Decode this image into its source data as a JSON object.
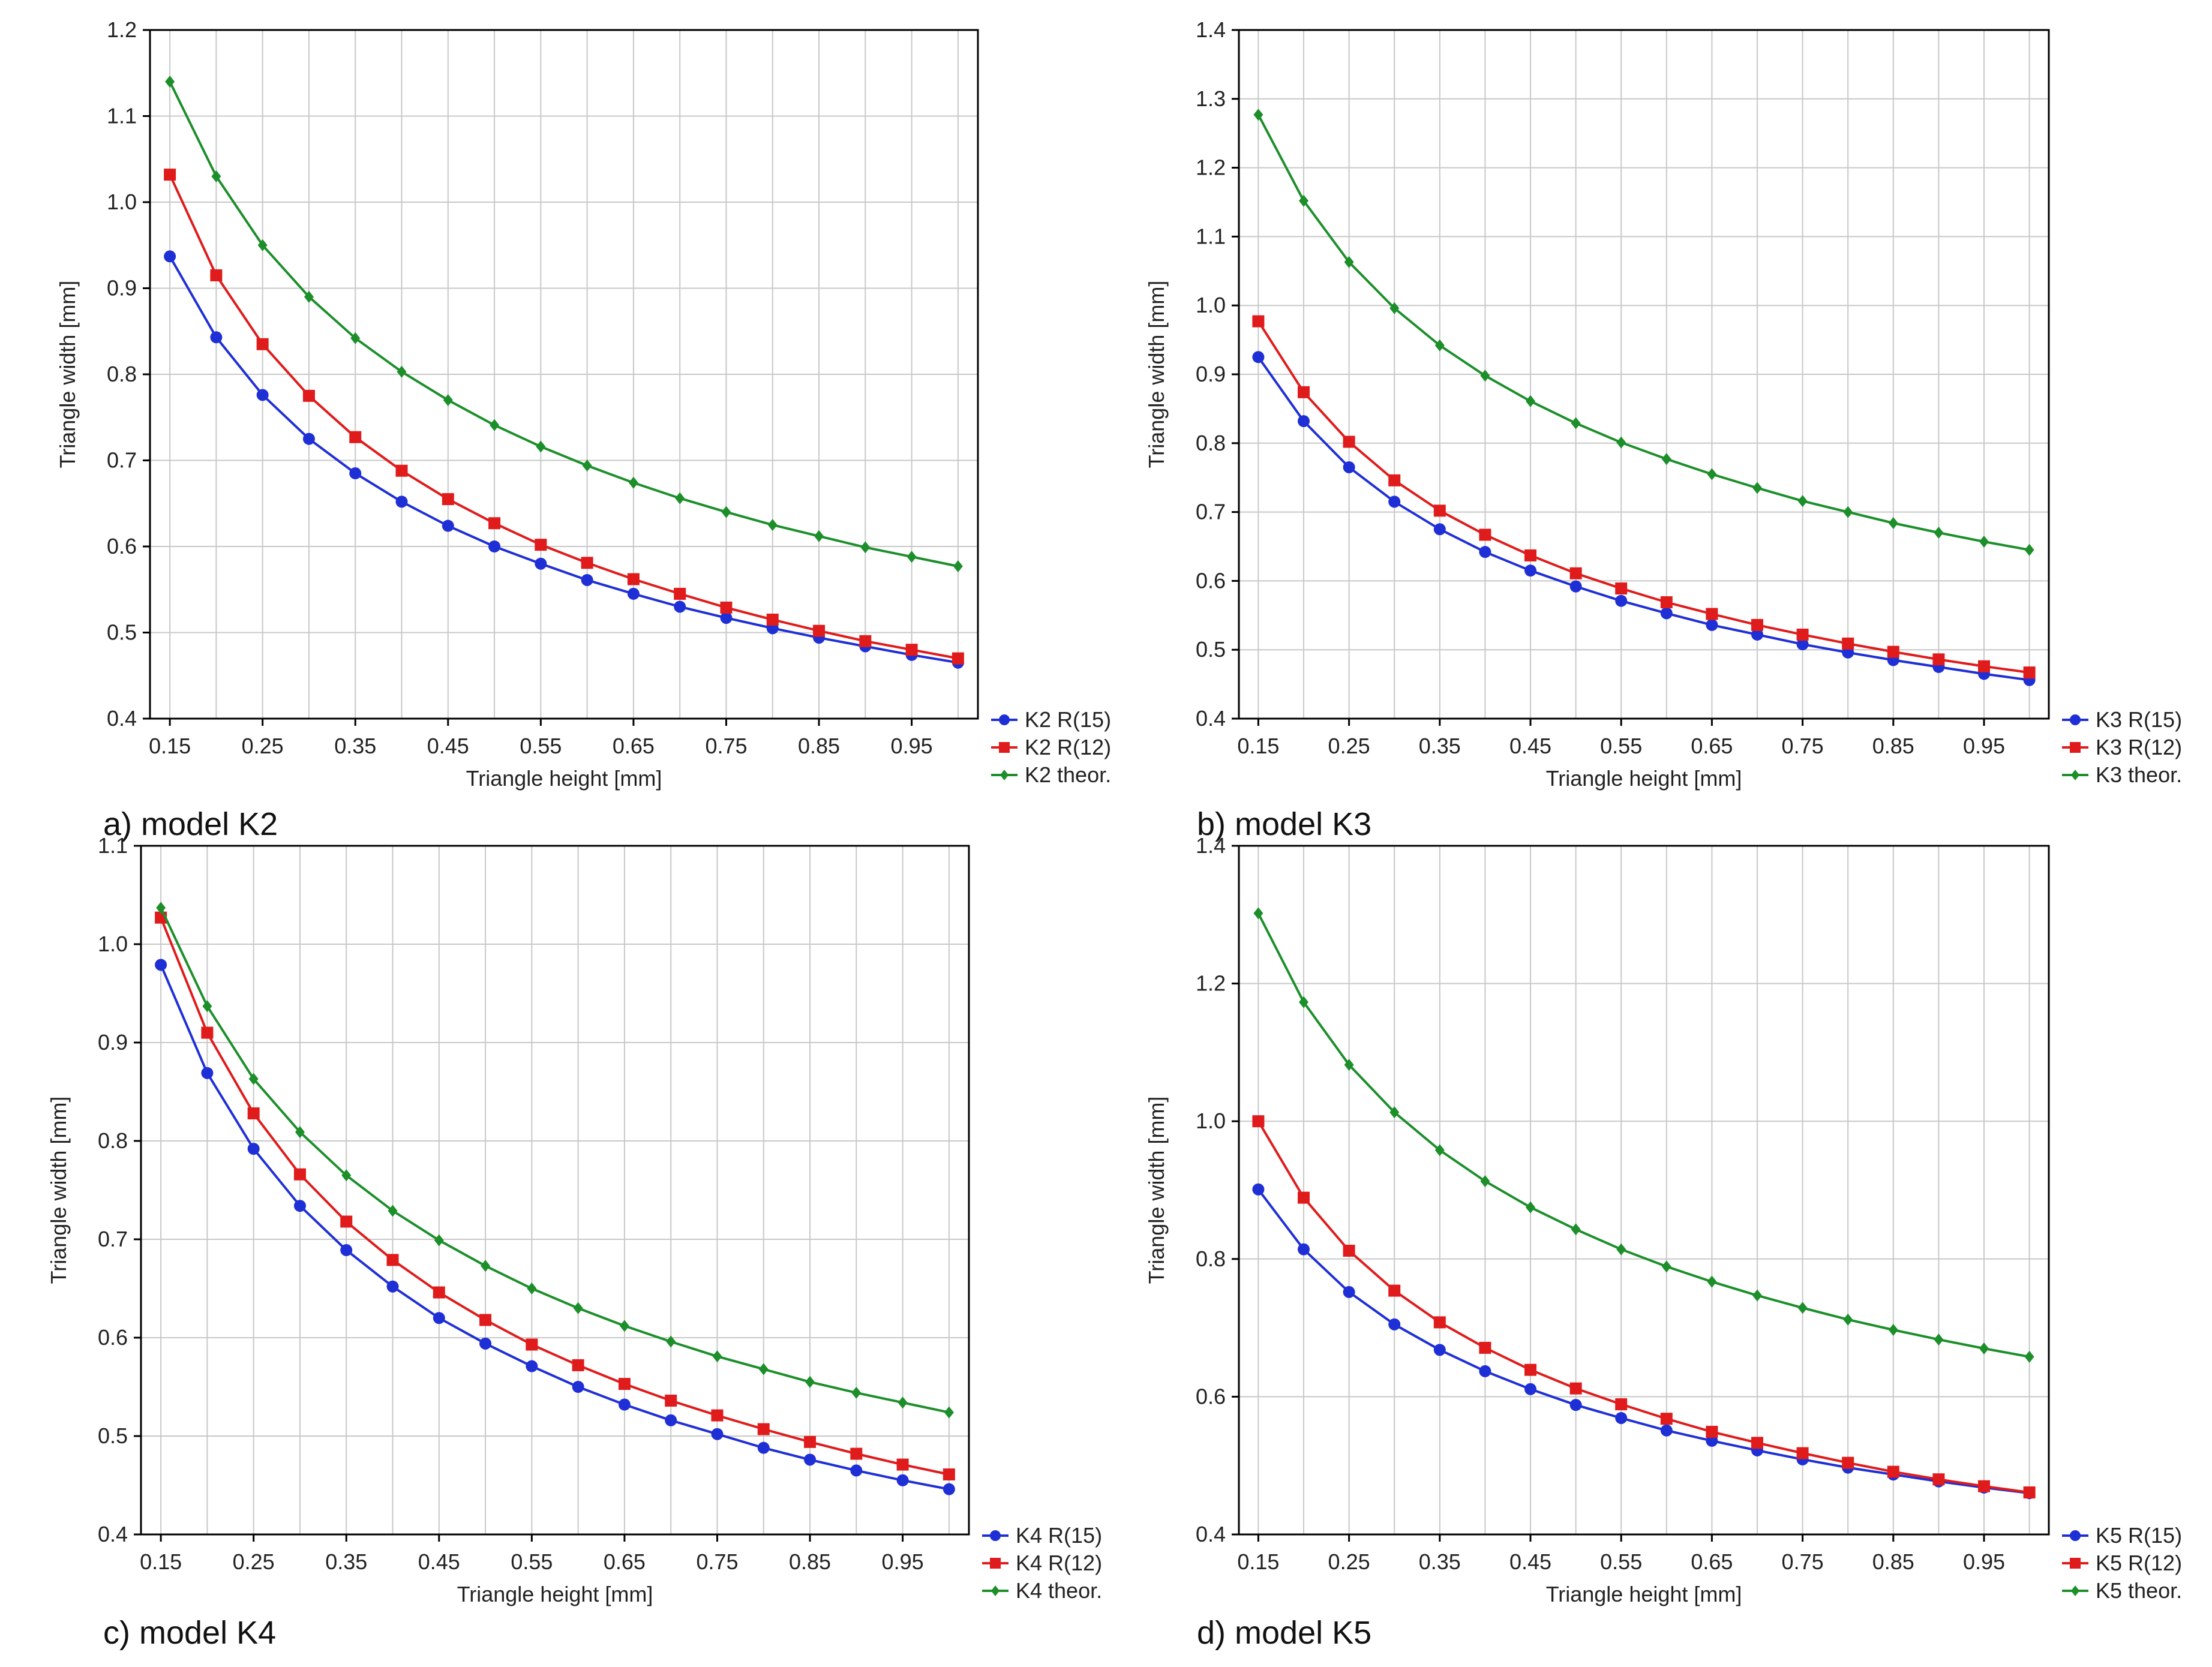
{
  "chart_data": [
    {
      "type": "line",
      "caption": "a) model K2",
      "xlabel": "Triangle height [mm]",
      "ylabel": "Triangle width [mm]",
      "xlim": [
        0.15,
        1.0
      ],
      "ylim": [
        0.4,
        1.2
      ],
      "xticks": [
        "0.15",
        "0.25",
        "0.35",
        "0.45",
        "0.55",
        "0.65",
        "0.75",
        "0.85",
        "0.95"
      ],
      "yticks": [
        "0.4",
        "0.5",
        "0.6",
        "0.7",
        "0.8",
        "0.9",
        "1.0",
        "1.1",
        "1.2"
      ],
      "grid": true,
      "legend_position": "bottom-right outside",
      "x": [
        0.15,
        0.2,
        0.25,
        0.3,
        0.35,
        0.4,
        0.45,
        0.5,
        0.55,
        0.6,
        0.65,
        0.7,
        0.75,
        0.8,
        0.85,
        0.9,
        0.95,
        1.0
      ],
      "series": [
        {
          "name": "K2 R(15)",
          "color": "#1f2fd6",
          "marker": "circle",
          "values": [
            0.937,
            0.843,
            0.776,
            0.725,
            0.685,
            0.652,
            0.624,
            0.6,
            0.58,
            0.561,
            0.545,
            0.53,
            0.517,
            0.505,
            0.494,
            0.484,
            0.474,
            0.465
          ]
        },
        {
          "name": "K2 R(12)",
          "color": "#e01b1b",
          "marker": "square",
          "values": [
            1.032,
            0.915,
            0.835,
            0.775,
            0.727,
            0.688,
            0.655,
            0.627,
            0.602,
            0.581,
            0.562,
            0.545,
            0.529,
            0.515,
            0.502,
            0.49,
            0.48,
            0.47
          ]
        },
        {
          "name": "K2 theor.",
          "color": "#1c8f2a",
          "marker": "diamond",
          "values": [
            1.14,
            1.03,
            0.95,
            0.89,
            0.842,
            0.803,
            0.77,
            0.741,
            0.716,
            0.694,
            0.674,
            0.656,
            0.64,
            0.625,
            0.612,
            0.599,
            0.588,
            0.577
          ]
        }
      ]
    },
    {
      "type": "line",
      "caption": "b) model K3",
      "xlabel": "Triangle height [mm]",
      "ylabel": "Triangle width [mm]",
      "xlim": [
        0.15,
        1.0
      ],
      "ylim": [
        0.4,
        1.4
      ],
      "xticks": [
        "0.15",
        "0.25",
        "0.35",
        "0.45",
        "0.55",
        "0.65",
        "0.75",
        "0.85",
        "0.95"
      ],
      "yticks": [
        "0.4",
        "0.5",
        "0.6",
        "0.7",
        "0.8",
        "0.9",
        "1.0",
        "1.1",
        "1.2",
        "1.3",
        "1.4"
      ],
      "grid": true,
      "legend_position": "bottom-right outside",
      "x": [
        0.15,
        0.2,
        0.25,
        0.3,
        0.35,
        0.4,
        0.45,
        0.5,
        0.55,
        0.6,
        0.65,
        0.7,
        0.75,
        0.8,
        0.85,
        0.9,
        0.95,
        1.0
      ],
      "series": [
        {
          "name": "K3 R(15)",
          "color": "#1f2fd6",
          "marker": "circle",
          "values": [
            0.925,
            0.832,
            0.765,
            0.715,
            0.675,
            0.642,
            0.615,
            0.592,
            0.571,
            0.553,
            0.536,
            0.522,
            0.508,
            0.496,
            0.485,
            0.475,
            0.465,
            0.456
          ]
        },
        {
          "name": "K3 R(12)",
          "color": "#e01b1b",
          "marker": "square",
          "values": [
            0.977,
            0.874,
            0.802,
            0.746,
            0.702,
            0.667,
            0.637,
            0.611,
            0.589,
            0.569,
            0.552,
            0.536,
            0.522,
            0.509,
            0.497,
            0.486,
            0.476,
            0.467
          ]
        },
        {
          "name": "K3 theor.",
          "color": "#1c8f2a",
          "marker": "diamond",
          "values": [
            1.277,
            1.152,
            1.063,
            0.996,
            0.942,
            0.898,
            0.861,
            0.829,
            0.801,
            0.777,
            0.755,
            0.735,
            0.716,
            0.7,
            0.684,
            0.67,
            0.657,
            0.645
          ]
        }
      ]
    },
    {
      "type": "line",
      "caption": "c) model K4",
      "xlabel": "Triangle height [mm]",
      "ylabel": "Triangle width [mm]",
      "xlim": [
        0.15,
        1.0
      ],
      "ylim": [
        0.4,
        1.1
      ],
      "xticks": [
        "0.15",
        "0.25",
        "0.35",
        "0.45",
        "0.55",
        "0.65",
        "0.75",
        "0.85",
        "0.95"
      ],
      "yticks": [
        "0.4",
        "0.5",
        "0.6",
        "0.7",
        "0.8",
        "0.9",
        "1.0",
        "1.1"
      ],
      "grid": true,
      "legend_position": "bottom-right outside",
      "x": [
        0.15,
        0.2,
        0.25,
        0.3,
        0.35,
        0.4,
        0.45,
        0.5,
        0.55,
        0.6,
        0.65,
        0.7,
        0.75,
        0.8,
        0.85,
        0.9,
        0.95,
        1.0
      ],
      "series": [
        {
          "name": "K4 R(15)",
          "color": "#1f2fd6",
          "marker": "circle",
          "values": [
            0.979,
            0.869,
            0.792,
            0.734,
            0.689,
            0.652,
            0.62,
            0.594,
            0.571,
            0.55,
            0.532,
            0.516,
            0.502,
            0.488,
            0.476,
            0.465,
            0.455,
            0.446
          ]
        },
        {
          "name": "K4 R(12)",
          "color": "#e01b1b",
          "marker": "square",
          "values": [
            1.027,
            0.91,
            0.828,
            0.766,
            0.718,
            0.679,
            0.646,
            0.618,
            0.593,
            0.572,
            0.553,
            0.536,
            0.521,
            0.507,
            0.494,
            0.482,
            0.471,
            0.461
          ]
        },
        {
          "name": "K4 theor.",
          "color": "#1c8f2a",
          "marker": "diamond",
          "values": [
            1.037,
            0.937,
            0.863,
            0.809,
            0.765,
            0.729,
            0.699,
            0.673,
            0.65,
            0.63,
            0.612,
            0.596,
            0.581,
            0.568,
            0.555,
            0.544,
            0.534,
            0.524
          ]
        }
      ]
    },
    {
      "type": "line",
      "caption": "d) model K5",
      "xlabel": "Triangle height [mm]",
      "ylabel": "Triangle width [mm]",
      "xlim": [
        0.15,
        1.0
      ],
      "ylim": [
        0.4,
        1.4
      ],
      "xticks": [
        "0.15",
        "0.25",
        "0.35",
        "0.45",
        "0.55",
        "0.65",
        "0.75",
        "0.85",
        "0.95"
      ],
      "yticks": [
        "0.4",
        "0.6",
        "0.8",
        "1.0",
        "1.2",
        "1.4"
      ],
      "grid": true,
      "legend_position": "bottom-right outside",
      "x": [
        0.15,
        0.2,
        0.25,
        0.3,
        0.35,
        0.4,
        0.45,
        0.5,
        0.55,
        0.6,
        0.65,
        0.7,
        0.75,
        0.8,
        0.85,
        0.9,
        0.95,
        1.0
      ],
      "series": [
        {
          "name": "K5 R(15)",
          "color": "#1f2fd6",
          "marker": "circle",
          "values": [
            0.901,
            0.814,
            0.752,
            0.705,
            0.668,
            0.637,
            0.611,
            0.588,
            0.569,
            0.551,
            0.536,
            0.522,
            0.509,
            0.497,
            0.487,
            0.477,
            0.468,
            0.46
          ]
        },
        {
          "name": "K5 R(12)",
          "color": "#e01b1b",
          "marker": "square",
          "values": [
            1.0,
            0.889,
            0.812,
            0.754,
            0.708,
            0.671,
            0.639,
            0.612,
            0.589,
            0.568,
            0.549,
            0.533,
            0.518,
            0.504,
            0.491,
            0.48,
            0.47,
            0.461
          ]
        },
        {
          "name": "K5 theor.",
          "color": "#1c8f2a",
          "marker": "diamond",
          "values": [
            1.302,
            1.173,
            1.082,
            1.013,
            0.958,
            0.913,
            0.875,
            0.843,
            0.814,
            0.789,
            0.767,
            0.747,
            0.729,
            0.712,
            0.697,
            0.683,
            0.67,
            0.658
          ]
        }
      ]
    }
  ]
}
